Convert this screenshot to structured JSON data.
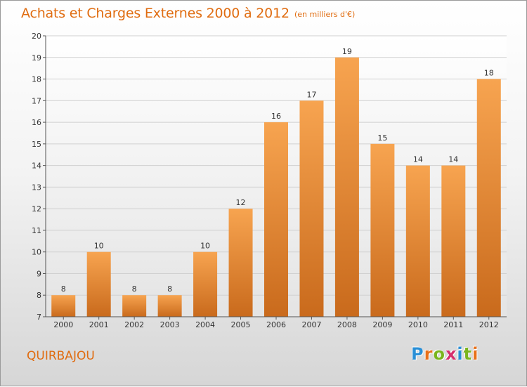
{
  "header": {
    "title": "Achats et Charges Externes 2000 à 2012",
    "unit": "(en milliers d'€)"
  },
  "footer": {
    "commune": "QUIRBAJOU",
    "logo": "Proxiti"
  },
  "colors": {
    "title": "#e06c10",
    "bar_top": "#f7a450",
    "bar_bottom": "#c96a1c"
  },
  "chart_data": {
    "type": "bar",
    "title": "Achats et Charges Externes 2000 à 2012",
    "subtitle": "(en milliers d'€)",
    "categories": [
      "2000",
      "2001",
      "2002",
      "2003",
      "2004",
      "2005",
      "2006",
      "2007",
      "2008",
      "2009",
      "2010",
      "2011",
      "2012"
    ],
    "values": [
      8,
      10,
      8,
      8,
      10,
      12,
      16,
      17,
      19,
      15,
      14,
      14,
      18
    ],
    "ylim": [
      7,
      20
    ],
    "yticks": [
      7,
      8,
      9,
      10,
      11,
      12,
      13,
      14,
      15,
      16,
      17,
      18,
      19,
      20
    ],
    "grid": true,
    "data_labels": true
  }
}
